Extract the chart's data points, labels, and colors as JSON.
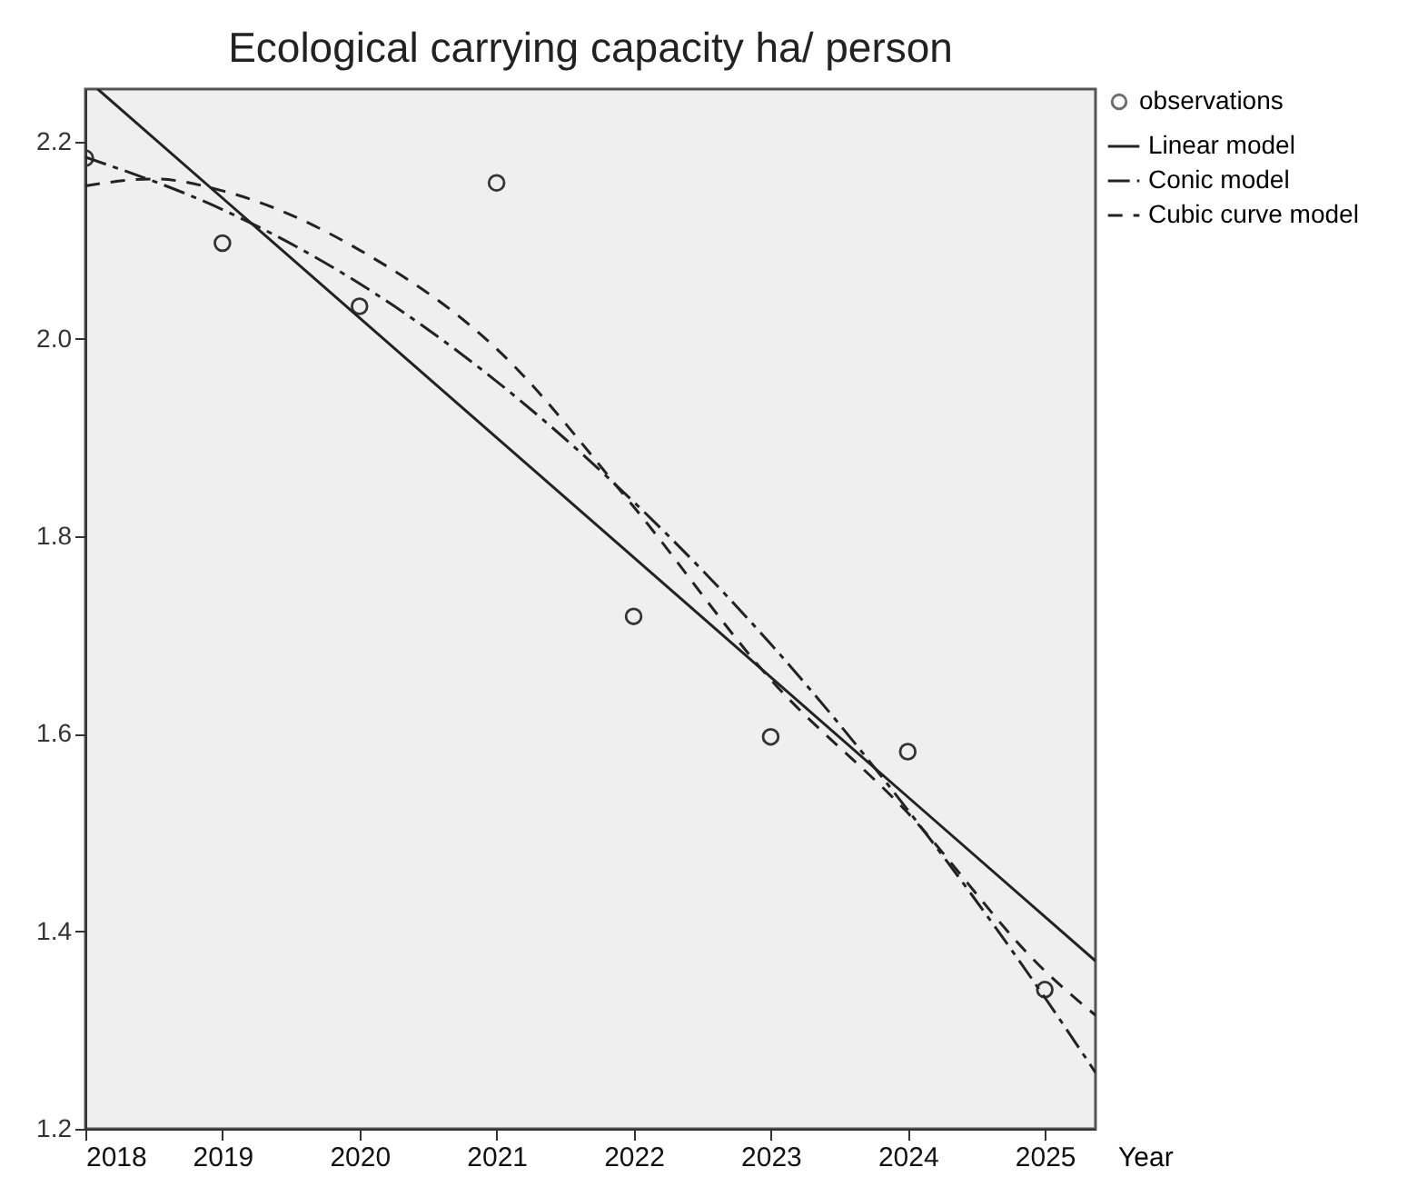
{
  "chart_data": {
    "type": "line",
    "title": "Ecological carrying capacity  ha/ person",
    "xlabel": "Year",
    "xlim": [
      2018,
      2025.37
    ],
    "xticks": [
      2018,
      2019,
      2020,
      2021,
      2022,
      2023,
      2024,
      2025
    ],
    "ylim": [
      1.2,
      2.253
    ],
    "yticks": [
      {
        "value": 1.2,
        "label": "1.2"
      },
      {
        "value": 1.4,
        "label": "1.4"
      },
      {
        "value": 1.6,
        "label": "1.6"
      },
      {
        "value": 1.8,
        "label": "1.8"
      },
      {
        "value": 2.0,
        "label": "2.0"
      },
      {
        "value": 2.2,
        "label": "2.2"
      }
    ],
    "grid": false,
    "legend": "top right",
    "series": [
      {
        "name": "observations",
        "type": "scatter",
        "marker": "circle",
        "color": "#333333",
        "x": [
          2018,
          2019,
          2020,
          2021,
          2022,
          2023,
          2024,
          2025
        ],
        "values": [
          2.183,
          2.097,
          2.033,
          2.158,
          1.719,
          1.597,
          1.582,
          1.341
        ]
      },
      {
        "name": "Linear model",
        "type": "line",
        "line_style": "solid",
        "color": "#222222",
        "x": [
          2018.09,
          2025.37
        ],
        "values": [
          2.253,
          1.37
        ]
      },
      {
        "name": "Conic model",
        "type": "line",
        "line_style": "dashed",
        "color": "#222222",
        "x": [
          2018,
          2019,
          2020,
          2021,
          2022,
          2023,
          2024,
          2025,
          2025.37
        ],
        "values": [
          2.184,
          2.131,
          2.056,
          1.957,
          1.835,
          1.691,
          1.523,
          1.333,
          1.257
        ]
      },
      {
        "name": "Cubic curve model",
        "type": "line",
        "line_style": "dashed",
        "color": "#222222",
        "x": [
          2018,
          2018.5,
          2019,
          2020,
          2021,
          2022,
          2023,
          2024,
          2025,
          2025.37
        ],
        "values": [
          2.155,
          2.162,
          2.15,
          2.09,
          1.99,
          1.83,
          1.655,
          1.52,
          1.36,
          1.315
        ]
      }
    ]
  }
}
